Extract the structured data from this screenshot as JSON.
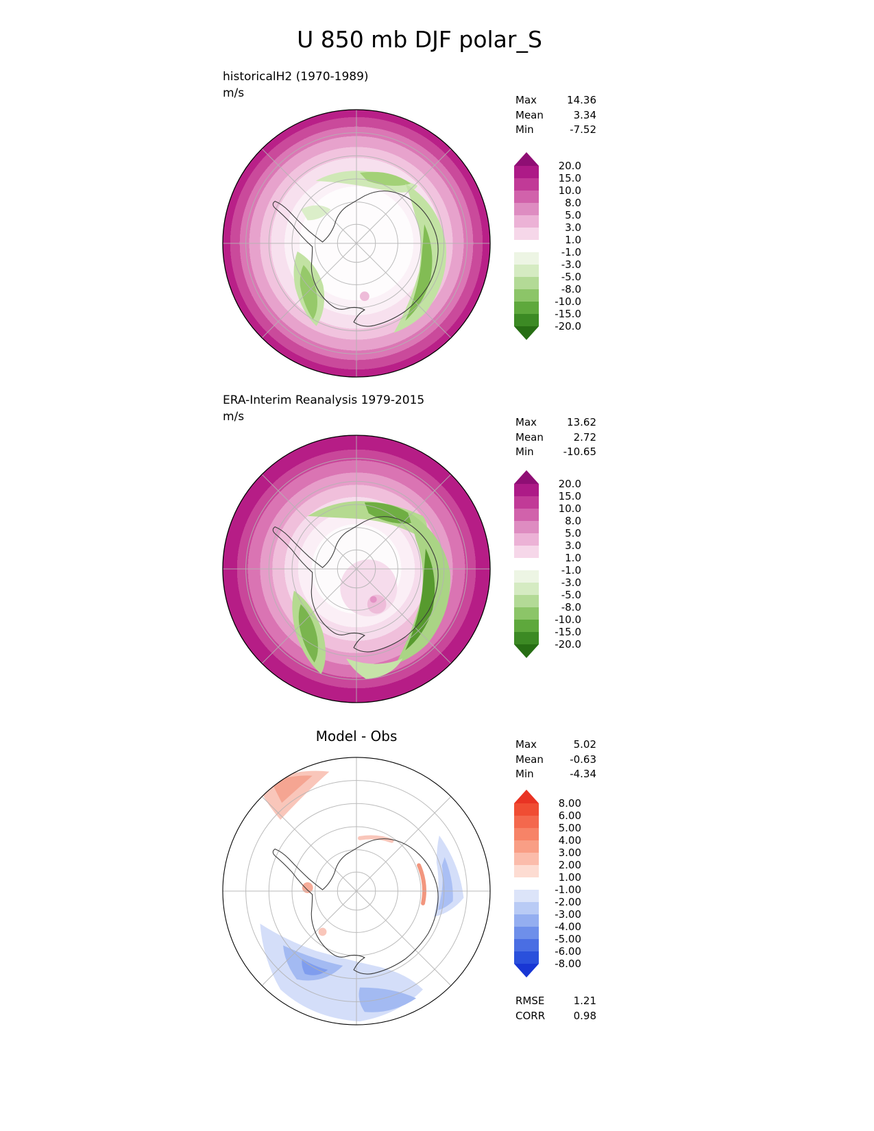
{
  "figure_title": "U 850 mb DJF polar_S",
  "panels": [
    {
      "title": "historicalH2 (1970-1989)",
      "units": "m/s",
      "stats": [
        {
          "label": "Max",
          "value": "14.36"
        },
        {
          "label": "Mean",
          "value": "3.34"
        },
        {
          "label": "Min",
          "value": "-7.52"
        }
      ],
      "colorbar": {
        "tick_labels": [
          "20.0",
          "15.0",
          "10.0",
          "8.0",
          "5.0",
          "3.0",
          "1.0",
          "-1.0",
          "-3.0",
          "-5.0",
          "-8.0",
          "-10.0",
          "-15.0",
          "-20.0"
        ],
        "segment_colors": [
          "#ad1a87",
          "#c13a97",
          "#d162ab",
          "#de8cc1",
          "#ecb2d6",
          "#f6d7e9",
          "#ffffff",
          "#edf5e4",
          "#d5ebc2",
          "#b3da96",
          "#8cc568",
          "#5ea83c",
          "#3c8a24"
        ],
        "top_arrow_color": "#8f0e74",
        "bottom_arrow_color": "#276e14"
      }
    },
    {
      "title": "ERA-Interim Reanalysis 1979-2015",
      "units": "m/s",
      "stats": [
        {
          "label": "Max",
          "value": "13.62"
        },
        {
          "label": "Mean",
          "value": "2.72"
        },
        {
          "label": "Min",
          "value": "-10.65"
        }
      ],
      "colorbar": {
        "tick_labels": [
          "20.0",
          "15.0",
          "10.0",
          "8.0",
          "5.0",
          "3.0",
          "1.0",
          "-1.0",
          "-3.0",
          "-5.0",
          "-8.0",
          "-10.0",
          "-15.0",
          "-20.0"
        ],
        "segment_colors": [
          "#ad1a87",
          "#c13a97",
          "#d162ab",
          "#de8cc1",
          "#ecb2d6",
          "#f6d7e9",
          "#ffffff",
          "#edf5e4",
          "#d5ebc2",
          "#b3da96",
          "#8cc568",
          "#5ea83c",
          "#3c8a24"
        ],
        "top_arrow_color": "#8f0e74",
        "bottom_arrow_color": "#276e14"
      }
    },
    {
      "title": "Model - Obs",
      "units": "",
      "stats": [
        {
          "label": "Max",
          "value": "5.02"
        },
        {
          "label": "Mean",
          "value": "-0.63"
        },
        {
          "label": "Min",
          "value": "-4.34"
        }
      ],
      "colorbar": {
        "tick_labels": [
          "8.00",
          "6.00",
          "5.00",
          "4.00",
          "3.00",
          "2.00",
          "1.00",
          "-1.00",
          "-2.00",
          "-3.00",
          "-4.00",
          "-5.00",
          "-6.00",
          "-8.00"
        ],
        "segment_colors": [
          "#f04d33",
          "#f4684d",
          "#f78367",
          "#f99e85",
          "#fbbcab",
          "#fddcd2",
          "#ffffff",
          "#dce4f9",
          "#b9cbf5",
          "#94aef0",
          "#6e8fea",
          "#4a6ee3",
          "#2a50dc"
        ],
        "top_arrow_color": "#e93323",
        "bottom_arrow_color": "#1836d4"
      }
    }
  ],
  "difference_stats": [
    {
      "label": "RMSE",
      "value": "1.21"
    },
    {
      "label": "CORR",
      "value": "0.98"
    }
  ],
  "chart_data": [
    {
      "type": "heatmap",
      "subtype": "filled_contour_map",
      "projection": "south_polar_stereographic",
      "region": "polar_S (Southern Hemisphere high latitudes)",
      "variable": "U (zonal wind) at 850 mb",
      "season": "DJF",
      "series_name": "historicalH2 (1970-1989)",
      "units": "m/s",
      "levels": [
        -20,
        -15,
        -10,
        -8,
        -5,
        -3,
        -1,
        1,
        3,
        5,
        8,
        10,
        15,
        20
      ],
      "stats": {
        "max": 14.36,
        "mean": 3.34,
        "min": -7.52
      },
      "palette": "magenta/pink = positive (westerly), white = near zero, green = negative (easterly)",
      "features": "Strong westerly ring (8-15 m/s) around the midlatitude edge of the map; near-zero winds over the ocean ring inside it; coastal Antarctic easterlies (-1 to -8 m/s) in green along the continent margin"
    },
    {
      "type": "heatmap",
      "subtype": "filled_contour_map",
      "projection": "south_polar_stereographic",
      "region": "polar_S (Southern Hemisphere high latitudes)",
      "variable": "U (zonal wind) at 850 mb",
      "season": "DJF",
      "series_name": "ERA-Interim Reanalysis 1979-2015",
      "units": "m/s",
      "levels": [
        -20,
        -15,
        -10,
        -8,
        -5,
        -3,
        -1,
        1,
        3,
        5,
        8,
        10,
        15,
        20
      ],
      "stats": {
        "max": 13.62,
        "mean": 2.72,
        "min": -10.65
      },
      "palette": "magenta/pink = positive (westerly), white = near zero, green = negative (easterly)",
      "features": "Broader/stronger westerly ring; stronger coastal easterlies (-5 to -10 m/s) around Antarctica; weak pink (westerly) patch near the pole"
    },
    {
      "type": "heatmap",
      "subtype": "difference_map",
      "projection": "south_polar_stereographic",
      "region": "polar_S (Southern Hemisphere high latitudes)",
      "variable": "U 850 mb bias (Model - Obs)",
      "season": "DJF",
      "series_name": "Model - Obs",
      "units": "m/s",
      "levels": [
        -8,
        -6,
        -5,
        -4,
        -3,
        -2,
        -1,
        1,
        2,
        3,
        4,
        5,
        6,
        8
      ],
      "stats": {
        "max": 5.02,
        "mean": -0.63,
        "min": -4.34,
        "rmse": 1.21,
        "corr": 0.98
      },
      "palette": "red = positive bias, white = near zero, blue = negative bias",
      "features": "Mostly near-zero differences; negative bias (-1 to -4 m/s) over the southwestern and southeastern Southern Ocean sectors; weak positive bias at the northwest map edge and small red patches along the coast"
    }
  ]
}
